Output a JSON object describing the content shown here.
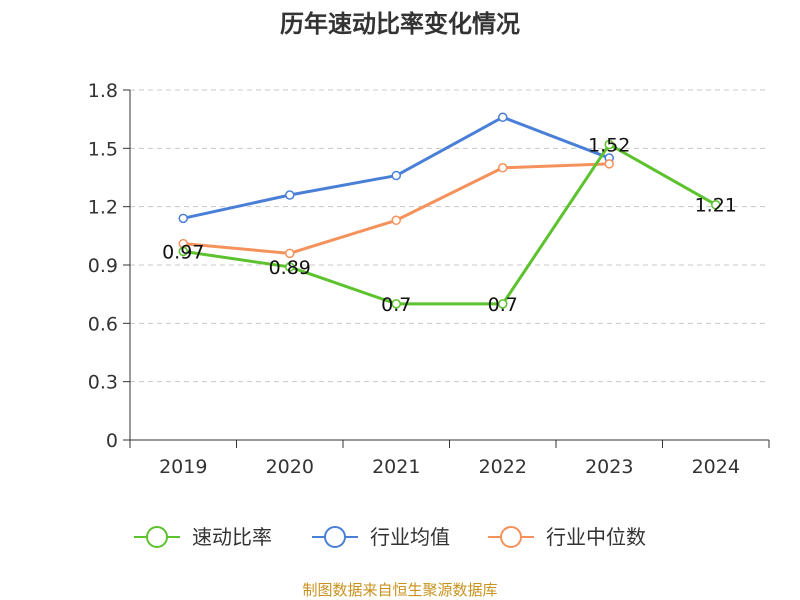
{
  "chart_data": {
    "type": "line",
    "title": "历年速动比率变化情况",
    "xlabel": "",
    "ylabel": "",
    "categories": [
      "2019",
      "2020",
      "2021",
      "2022",
      "2023",
      "2024"
    ],
    "ylim": [
      0,
      1.8
    ],
    "yticks": [
      "0",
      "0.3",
      "0.6",
      "0.9",
      "1.2",
      "1.5",
      "1.8"
    ],
    "grid": true,
    "legend_position": "bottom",
    "series": [
      {
        "name": "速动比率",
        "color": "#5cc22e",
        "values": [
          0.97,
          0.89,
          0.7,
          0.7,
          1.52,
          1.21
        ],
        "data_labels": [
          "0.97",
          "0.89",
          "0.7",
          "0.7",
          "1.52",
          "1.21"
        ]
      },
      {
        "name": "行业均值",
        "color": "#4a7fd8",
        "values": [
          1.14,
          1.26,
          1.36,
          1.66,
          1.45,
          null
        ]
      },
      {
        "name": "行业中位数",
        "color": "#f5925c",
        "values": [
          1.01,
          0.96,
          1.13,
          1.4,
          1.42,
          null
        ]
      }
    ]
  },
  "source": "制图数据来自恒生聚源数据库"
}
